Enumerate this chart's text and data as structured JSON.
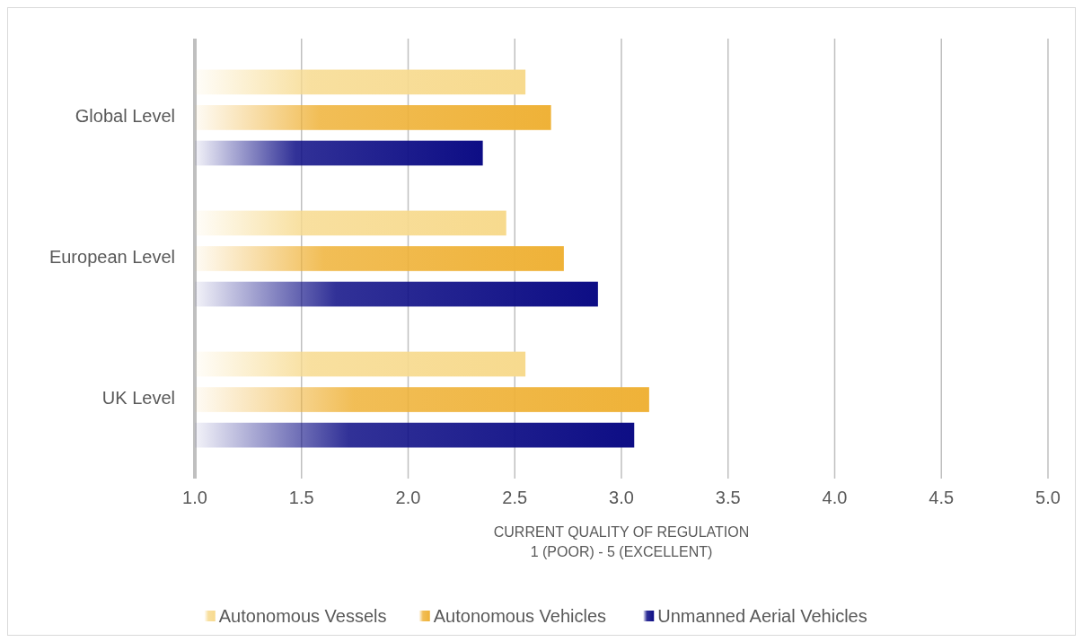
{
  "chart_data": {
    "type": "bar",
    "orientation": "horizontal",
    "categories": [
      "Global Level",
      "European Level",
      "UK Level"
    ],
    "series": [
      {
        "name": "Autonomous Vessels",
        "color": "#f7da8e",
        "values": [
          2.55,
          2.46,
          2.55
        ]
      },
      {
        "name": "Autonomous Vehicles",
        "color": "#efb238",
        "values": [
          2.67,
          2.73,
          3.13
        ]
      },
      {
        "name": "Unmanned Aerial Vehicles",
        "color": "#0d0d85",
        "values": [
          2.35,
          2.89,
          3.06
        ]
      }
    ],
    "xlabel": "CURRENT QUALITY OF REGULATION\n1 (POOR) - 5 (EXCELLENT)",
    "xlim": [
      1.0,
      5.0
    ],
    "xticks": [
      {
        "value": 1,
        "label": "1.0"
      },
      {
        "value": 1.5,
        "label": "1.5"
      },
      {
        "value": 2,
        "label": "2.0"
      },
      {
        "value": 2.5,
        "label": "2.5"
      },
      {
        "value": 3,
        "label": "3.0"
      },
      {
        "value": 3.5,
        "label": "3.5"
      },
      {
        "value": 4,
        "label": "4.0"
      },
      {
        "value": 4.5,
        "label": "4.5"
      },
      {
        "value": 5,
        "label": "5.0"
      }
    ],
    "grid": "x",
    "legend": "bottom"
  }
}
